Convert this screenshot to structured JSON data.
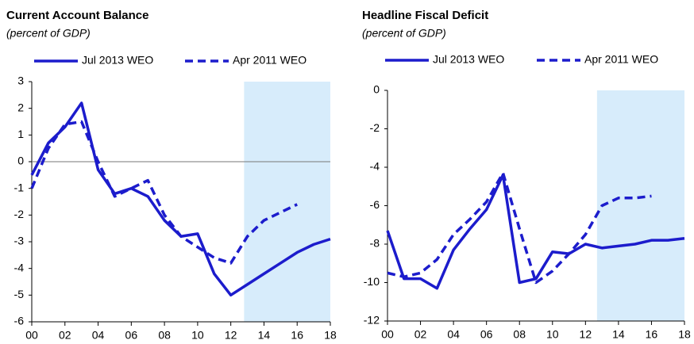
{
  "chart_data": [
    {
      "type": "line",
      "title": "Current Account Balance",
      "subtitle": "(percent of GDP)",
      "x": [
        2000,
        2001,
        2002,
        2003,
        2004,
        2005,
        2006,
        2007,
        2008,
        2009,
        2010,
        2011,
        2012,
        2013,
        2014,
        2015,
        2016,
        2017,
        2018
      ],
      "series": [
        {
          "name": "Jul 2013 WEO",
          "color": "#1c1ccc",
          "dash": false,
          "values": [
            -0.5,
            0.7,
            1.3,
            2.2,
            -0.3,
            -1.2,
            -1.0,
            -1.3,
            -2.2,
            -2.8,
            -2.7,
            -4.2,
            -5.0,
            -4.6,
            -4.2,
            -3.8,
            -3.4,
            -3.1,
            -2.9
          ]
        },
        {
          "name": "Apr 2011 WEO",
          "color": "#1c1ccc",
          "dash": true,
          "values": [
            -1.0,
            0.5,
            1.4,
            1.5,
            0.0,
            -1.3,
            -1.0,
            -0.7,
            -2.0,
            -2.8,
            -3.2,
            -3.6,
            -3.8,
            -2.8,
            -2.2,
            -1.9,
            -1.6,
            null,
            null
          ]
        }
      ],
      "xlim": [
        2000,
        2018
      ],
      "ylim": [
        -6,
        3
      ],
      "xticks": [
        {
          "value": 2000,
          "label": "00"
        },
        {
          "value": 2002,
          "label": "02"
        },
        {
          "value": 2004,
          "label": "04"
        },
        {
          "value": 2006,
          "label": "06"
        },
        {
          "value": 2008,
          "label": "08"
        },
        {
          "value": 2010,
          "label": "10"
        },
        {
          "value": 2012,
          "label": "12"
        },
        {
          "value": 2014,
          "label": "14"
        },
        {
          "value": 2016,
          "label": "16"
        },
        {
          "value": 2018,
          "label": "18"
        }
      ],
      "yticks": [
        -6,
        -5,
        -4,
        -3,
        -2,
        -1,
        0,
        1,
        2,
        3
      ],
      "shade_x": [
        2012.8,
        2018
      ],
      "shade_color": "#d7ecfb",
      "zero_line": true
    },
    {
      "type": "line",
      "title": "Headline Fiscal Deficit",
      "subtitle": "(percent of GDP)",
      "x": [
        2000,
        2001,
        2002,
        2003,
        2004,
        2005,
        2006,
        2007,
        2008,
        2009,
        2010,
        2011,
        2012,
        2013,
        2014,
        2015,
        2016,
        2017,
        2018
      ],
      "series": [
        {
          "name": "Jul 2013 WEO",
          "color": "#1c1ccc",
          "dash": false,
          "values": [
            -7.3,
            -9.8,
            -9.8,
            -10.3,
            -8.3,
            -7.2,
            -6.2,
            -4.4,
            -10.0,
            -9.8,
            -8.4,
            -8.5,
            -8.0,
            -8.2,
            -8.1,
            -8.0,
            -7.8,
            -7.8,
            -7.7
          ]
        },
        {
          "name": "Apr 2011 WEO",
          "color": "#1c1ccc",
          "dash": true,
          "values": [
            -9.5,
            -9.7,
            -9.5,
            -8.8,
            -7.5,
            -6.7,
            -5.8,
            -4.3,
            -7.2,
            -10.0,
            -9.4,
            -8.5,
            -7.5,
            -6.0,
            -5.6,
            -5.6,
            -5.5,
            null,
            null
          ]
        }
      ],
      "xlim": [
        2000,
        2018
      ],
      "ylim": [
        -12,
        0
      ],
      "xticks": [
        {
          "value": 2000,
          "label": "00"
        },
        {
          "value": 2002,
          "label": "02"
        },
        {
          "value": 2004,
          "label": "04"
        },
        {
          "value": 2006,
          "label": "06"
        },
        {
          "value": 2008,
          "label": "08"
        },
        {
          "value": 2010,
          "label": "10"
        },
        {
          "value": 2012,
          "label": "12"
        },
        {
          "value": 2014,
          "label": "14"
        },
        {
          "value": 2016,
          "label": "16"
        },
        {
          "value": 2018,
          "label": "18"
        }
      ],
      "yticks": [
        -12,
        -10,
        -8,
        -6,
        -4,
        -2,
        0
      ],
      "shade_x": [
        2012.7,
        2018
      ],
      "shade_color": "#d7ecfb",
      "zero_line": false
    }
  ]
}
